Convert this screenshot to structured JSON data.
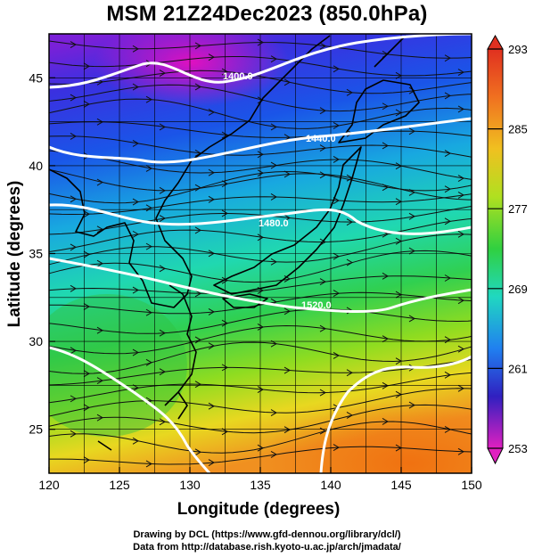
{
  "title": "MSM 21Z24Dec2023 (850.0hPa)",
  "map": {
    "xlabel": "Longitude (degrees)",
    "ylabel": "Latitude  (degrees)",
    "x_ticks": [
      "120",
      "125",
      "130",
      "135",
      "140",
      "145",
      "150"
    ],
    "y_ticks": [
      "25",
      "30",
      "35",
      "40",
      "45"
    ],
    "xlim": [
      120,
      150
    ],
    "ylim": [
      22.5,
      47.5
    ],
    "contour_labels": [
      "1400.0",
      "1440.0",
      "1480.0",
      "1520.0"
    ]
  },
  "colorbar": {
    "tick_labels": [
      "293",
      "285",
      "277",
      "269",
      "261",
      "253"
    ],
    "range": [
      253,
      293
    ],
    "colors": [
      "#e020c0",
      "#a020e0",
      "#3030d0",
      "#2070f0",
      "#20c0e0",
      "#20e090",
      "#30d030",
      "#a0e020",
      "#f0e020",
      "#f0a020",
      "#f06020",
      "#e03020"
    ]
  },
  "credits": {
    "line1": "Drawing by DCL (https://www.gfd-dennou.org/library/dcl/)",
    "line2": "Data from http://database.rish.kyoto-u.ac.jp/arch/jmadata/"
  }
}
